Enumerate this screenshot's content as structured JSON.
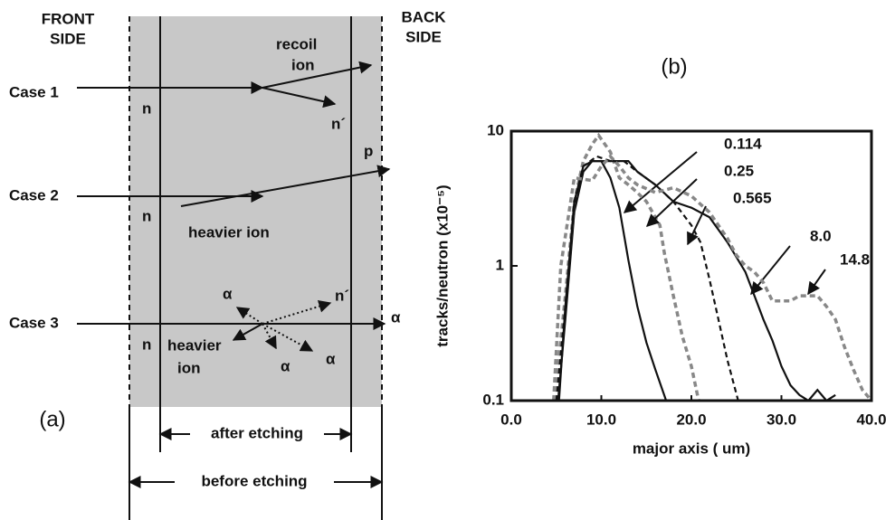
{
  "diagram": {
    "panel_label": "(a)",
    "front_side": [
      "FRONT",
      "SIDE"
    ],
    "back_side": [
      "BACK",
      "SIDE"
    ],
    "case_1": {
      "label": "Case 1",
      "incident": "n",
      "recoil": [
        "recoil",
        "ion"
      ],
      "scattered": "n´"
    },
    "case_2": {
      "label": "Case 2",
      "incident": "n",
      "proton": "p",
      "heavy": "heavier ion"
    },
    "case_3": {
      "label": "Case 3",
      "incident": "n",
      "heavy": [
        "heavier",
        "ion"
      ],
      "alphas": [
        "α",
        "α",
        "α",
        "α"
      ],
      "neutron": "n´"
    },
    "after_etching": "after etching",
    "before_etching": "before etching"
  },
  "chart_data": {
    "type": "line",
    "panel_label": "(b)",
    "x_label": "major axis ( um)",
    "y_label": "tracks/neutron (x10⁻⁵)",
    "log_y": true,
    "xlim": [
      0,
      40
    ],
    "ylim": [
      0.1,
      10
    ],
    "xticks": [
      {
        "value": 0,
        "label": "0.0"
      },
      {
        "value": 10,
        "label": "10.0"
      },
      {
        "value": 20,
        "label": "20.0"
      },
      {
        "value": 30,
        "label": "30.0"
      },
      {
        "value": 40,
        "label": "40.0"
      }
    ],
    "yticks": [
      0.1,
      1,
      10
    ],
    "series": [
      {
        "name": "0.114",
        "color": "#111111",
        "style": "solid",
        "x": [
          5.2,
          6,
          7,
          8,
          9,
          10,
          11,
          12,
          13,
          14,
          15,
          16,
          17.2
        ],
        "values": [
          0.1,
          0.4,
          2.5,
          5,
          6,
          6,
          4.5,
          2.7,
          1.1,
          0.5,
          0.27,
          0.17,
          0.1
        ]
      },
      {
        "name": "0.25",
        "color": "#888888",
        "style": "dashed",
        "x": [
          4.8,
          6,
          7,
          8,
          9,
          9.7,
          11,
          12,
          13,
          14,
          15,
          16.5,
          17,
          18,
          19,
          20,
          20.8
        ],
        "values": [
          0.1,
          0.6,
          3,
          6,
          8,
          9.3,
          7,
          4.5,
          4,
          3.5,
          3,
          2,
          1.25,
          0.6,
          0.3,
          0.18,
          0.1
        ]
      },
      {
        "name": "0.565",
        "color": "#111111",
        "style": "dashed",
        "x": [
          5,
          6,
          7,
          8,
          9.5,
          11,
          12.5,
          14,
          16,
          18,
          20,
          21,
          22,
          23,
          24,
          25.2
        ],
        "values": [
          0.1,
          0.5,
          2.8,
          5.5,
          6.5,
          6,
          6,
          5,
          4,
          3,
          2,
          1.5,
          0.8,
          0.4,
          0.2,
          0.1
        ]
      },
      {
        "name": "8.0",
        "color": "#111111",
        "style": "solid",
        "x": [
          5.3,
          6,
          7,
          8,
          9,
          11,
          13,
          14,
          16,
          18,
          20,
          22,
          24,
          26,
          27,
          28,
          29,
          30,
          31,
          32,
          33,
          34,
          35,
          36
        ],
        "values": [
          0.1,
          0.5,
          3,
          5.5,
          6,
          6,
          6,
          5,
          4,
          3,
          2.7,
          2.3,
          1.5,
          0.9,
          0.6,
          0.4,
          0.28,
          0.18,
          0.13,
          0.11,
          0.1,
          0.12,
          0.1,
          0.11
        ]
      },
      {
        "name": "14.8",
        "color": "#888888",
        "style": "dashed",
        "x": [
          4.7,
          5.5,
          7,
          9,
          10,
          11,
          12,
          13,
          14,
          16,
          18,
          20,
          22,
          24,
          25,
          26,
          27,
          28,
          29,
          30,
          31,
          32,
          34,
          35,
          36,
          37,
          38,
          39,
          40
        ],
        "values": [
          0.1,
          1,
          4.5,
          4.3,
          5.5,
          6.5,
          5.5,
          4.5,
          4,
          3.5,
          3.8,
          3.3,
          2.5,
          1.6,
          1.2,
          1,
          0.9,
          0.75,
          0.55,
          0.55,
          0.55,
          0.6,
          0.6,
          0.5,
          0.4,
          0.25,
          0.17,
          0.12,
          0.1
        ]
      }
    ]
  }
}
